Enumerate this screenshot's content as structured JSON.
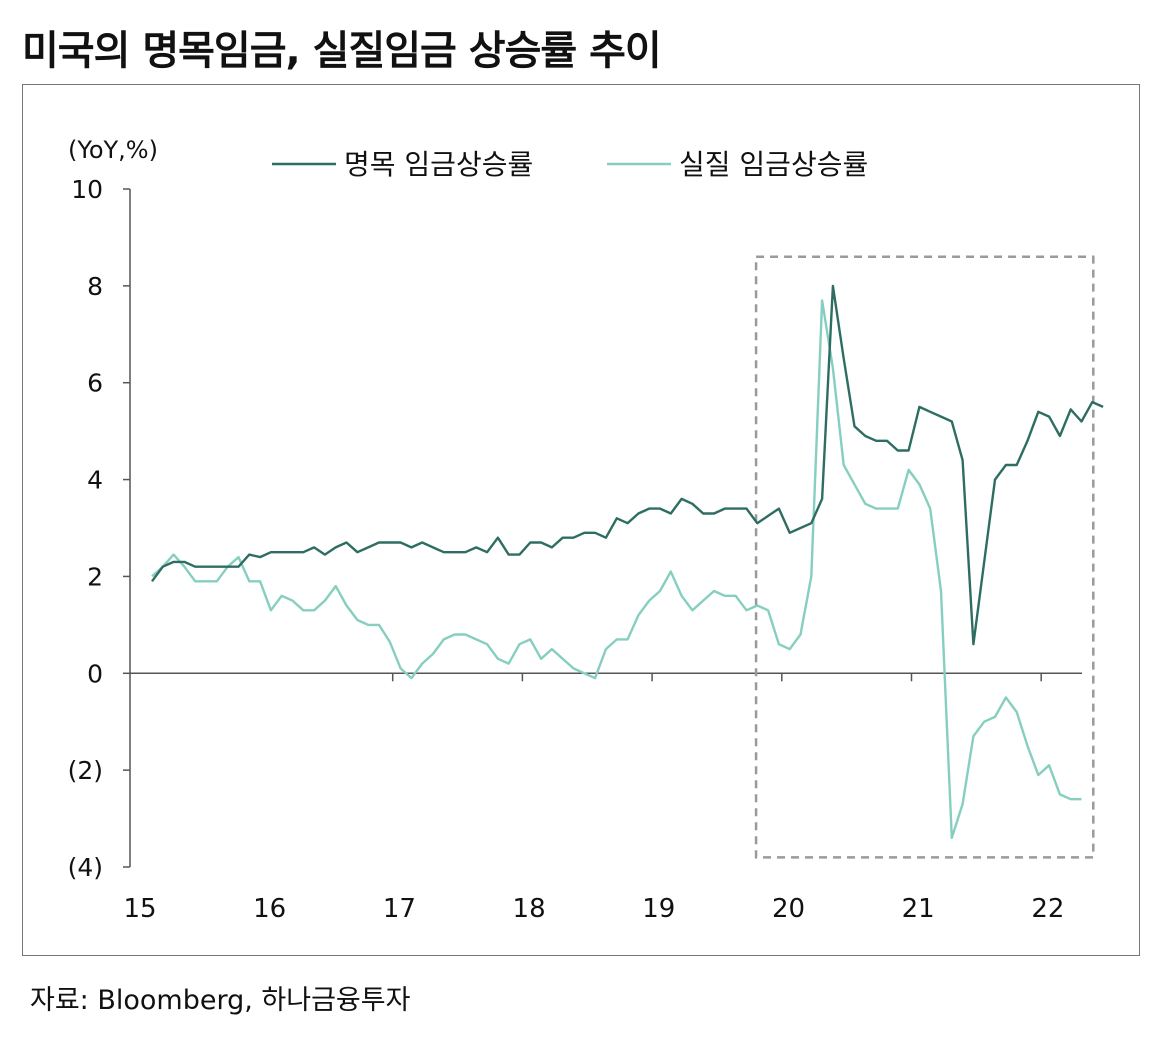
{
  "title": "미국의 명목임금, 실질임금 상승률 추이",
  "source": "자료: Bloomberg, 하나금융투자",
  "colors": {
    "nominal": "#2e6e62",
    "real": "#86cfc0",
    "axis": "#555555",
    "highlight": "#9a9a9a"
  },
  "chart_data": {
    "type": "line",
    "unit_label": "(YoY,%)",
    "ylim": [
      -4,
      10
    ],
    "y_ticks": [
      10,
      8,
      6,
      4,
      2,
      0,
      -2,
      -4
    ],
    "y_tick_labels": [
      "10",
      "8",
      "6",
      "4",
      "2",
      "0",
      "(2)",
      "(4)"
    ],
    "x_tick_labels": [
      "15",
      "16",
      "17",
      "18",
      "19",
      "20",
      "21",
      "22"
    ],
    "x_start": 2015.0,
    "x_step": 0.0833333,
    "highlight_range": {
      "x_from": 2019.75,
      "x_to": 2022.35,
      "y_from": -3.8,
      "y_to": 8.6,
      "style": "dashed box"
    },
    "series": [
      {
        "name": "명목 임금상승률",
        "values": [
          1.9,
          2.2,
          2.3,
          2.3,
          2.2,
          2.2,
          2.2,
          2.2,
          2.2,
          2.45,
          2.4,
          2.5,
          2.5,
          2.5,
          2.5,
          2.6,
          2.45,
          2.6,
          2.7,
          2.5,
          2.6,
          2.7,
          2.7,
          2.7,
          2.6,
          2.7,
          2.6,
          2.5,
          2.5,
          2.5,
          2.6,
          2.5,
          2.8,
          2.45,
          2.45,
          2.7,
          2.7,
          2.6,
          2.8,
          2.8,
          2.9,
          2.9,
          2.8,
          3.2,
          3.1,
          3.3,
          3.4,
          3.4,
          3.3,
          3.6,
          3.5,
          3.3,
          3.3,
          3.4,
          3.4,
          3.4,
          3.1,
          3.25,
          3.4,
          2.9,
          3.0,
          3.1,
          3.6,
          8.0,
          6.5,
          5.1,
          4.9,
          4.8,
          4.8,
          4.6,
          4.6,
          5.5,
          5.4,
          5.3,
          5.2,
          4.4,
          0.6,
          2.3,
          4.0,
          4.3,
          4.3,
          4.8,
          5.4,
          5.3,
          4.9,
          5.45,
          5.2,
          5.6,
          5.5
        ]
      },
      {
        "name": "실질 임금상승률",
        "values": [
          2.0,
          2.2,
          2.45,
          2.2,
          1.9,
          1.9,
          1.9,
          2.2,
          2.4,
          1.9,
          1.9,
          1.3,
          1.6,
          1.5,
          1.3,
          1.3,
          1.5,
          1.8,
          1.4,
          1.1,
          1.0,
          1.0,
          0.65,
          0.1,
          -0.1,
          0.2,
          0.4,
          0.7,
          0.8,
          0.8,
          0.7,
          0.6,
          0.3,
          0.2,
          0.6,
          0.7,
          0.3,
          0.5,
          0.3,
          0.1,
          0.0,
          -0.1,
          0.5,
          0.7,
          0.7,
          1.2,
          1.5,
          1.7,
          2.1,
          1.6,
          1.3,
          1.5,
          1.7,
          1.6,
          1.6,
          1.3,
          1.4,
          1.3,
          0.6,
          0.5,
          0.8,
          2.0,
          7.7,
          6.3,
          4.3,
          3.9,
          3.5,
          3.4,
          3.4,
          3.4,
          4.2,
          3.9,
          3.4,
          1.7,
          -3.4,
          -2.7,
          -1.3,
          -1.0,
          -0.9,
          -0.5,
          -0.8,
          -1.5,
          -2.1,
          -1.9,
          -2.5,
          -2.6,
          -2.6
        ]
      }
    ]
  }
}
